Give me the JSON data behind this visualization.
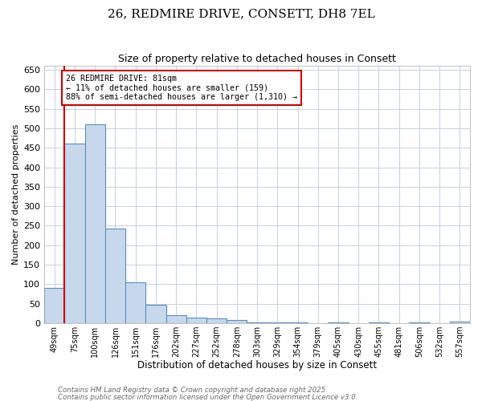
{
  "title": "26, REDMIRE DRIVE, CONSETT, DH8 7EL",
  "subtitle": "Size of property relative to detached houses in Consett",
  "xlabel": "Distribution of detached houses by size in Consett",
  "ylabel": "Number of detached properties",
  "categories": [
    "49sqm",
    "75sqm",
    "100sqm",
    "126sqm",
    "151sqm",
    "176sqm",
    "202sqm",
    "227sqm",
    "252sqm",
    "278sqm",
    "303sqm",
    "329sqm",
    "354sqm",
    "379sqm",
    "405sqm",
    "430sqm",
    "455sqm",
    "481sqm",
    "506sqm",
    "532sqm",
    "557sqm"
  ],
  "values": [
    90,
    460,
    510,
    242,
    105,
    48,
    20,
    15,
    12,
    8,
    3,
    3,
    3,
    0,
    3,
    0,
    2,
    0,
    2,
    0,
    4
  ],
  "bar_color": "#c8d8ec",
  "bar_edge_color": "#5a8ec0",
  "marker_line_color": "#cc0000",
  "annotation_line1": "26 REDMIRE DRIVE: 81sqm",
  "annotation_line2": "← 11% of detached houses are smaller (159)",
  "annotation_line3": "88% of semi-detached houses are larger (1,310) →",
  "annotation_box_edge_color": "#cc0000",
  "ylim": [
    0,
    660
  ],
  "yticks": [
    0,
    50,
    100,
    150,
    200,
    250,
    300,
    350,
    400,
    450,
    500,
    550,
    600,
    650
  ],
  "footer1": "Contains HM Land Registry data © Crown copyright and database right 2025.",
  "footer2": "Contains public sector information licensed under the Open Government Licence v3.0.",
  "background_color": "#ffffff",
  "plot_bg_color": "#ffffff",
  "grid_color": "#c8d0dc"
}
